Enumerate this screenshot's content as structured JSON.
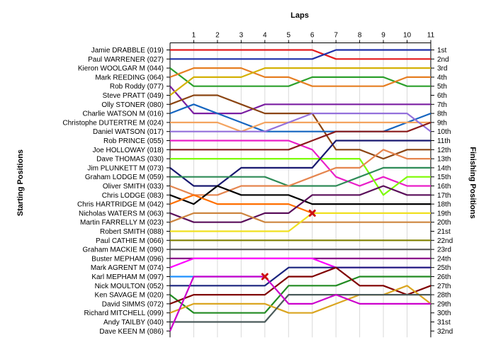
{
  "chart_data": {
    "type": "line",
    "title": "",
    "xlabel": "Laps",
    "ylabel_left": "Starting Positions",
    "ylabel_right": "Finishing Positions",
    "x": [
      0,
      1,
      2,
      3,
      4,
      5,
      6,
      7,
      8,
      9,
      10,
      11
    ],
    "x_tick_labels": [
      "1",
      "2",
      "3",
      "4",
      "5",
      "6",
      "7",
      "8",
      "9",
      "10",
      "11"
    ],
    "y_axis": "position (1 = top, 32 = bottom)",
    "grid": "vertical lines at each lap",
    "starting_labels": [
      "Jamie DRABBLE (019)",
      "Paul WARRENER (027)",
      "Kieron WOOLGAR   M (044)",
      "Mark REEDING (064)",
      "Rob Roddy (077)",
      "Steve PRATT (049)",
      "Olly STONER (080)",
      "Charlie WATSON   M (016)",
      "Christophe DUTERTRE   M (024)",
      "Daniel WATSON (017)",
      "Rob PRINCE (055)",
      "Joe HOLLOWAY (018)",
      "Dave THOMAS (030)",
      "Jim PLUNKETT   M (073)",
      "Graham LODGE   M (059)",
      "Oliver SMITH (033)",
      "Chris LODGE (083)",
      "Chris HARTRIDGE   M (042)",
      "Nicholas WATERS   M (063)",
      "Martin FARRELLY   M (023)",
      "Robert SMITH (088)",
      "Paul CATHIE   M (066)",
      "Graham MACKIE   M (090)",
      "Buster MEPHAM (096)",
      "Mark AGRENT   M (074)",
      "Karl MEPHAM   M (097)",
      "Nick MOULTON (052)",
      "Ken SAVAGE   M (020)",
      "David SIMMS (072)",
      "Richard MITCHELL (099)",
      "Andy TAILBY (040)",
      "Dave KEEN   M (086)"
    ],
    "finishing_labels": [
      "1st",
      "2nd",
      "3rd",
      "4th",
      "5th",
      "6th",
      "7th",
      "8th",
      "9th",
      "10th",
      "11th",
      "12th",
      "13th",
      "14th",
      "15th",
      "16th",
      "17th",
      "18th",
      "19th",
      "20th",
      "21st",
      "22nd",
      "23rd",
      "24th",
      "25th",
      "26th",
      "27th",
      "28th",
      "29th",
      "30th",
      "31st",
      "32nd"
    ],
    "series": [
      {
        "color": "#e31a1c",
        "positions": [
          1,
          1,
          1,
          1,
          1,
          1,
          1,
          2,
          2,
          2,
          2,
          2
        ]
      },
      {
        "color": "#1f2fa8",
        "positions": [
          2,
          2,
          2,
          2,
          2,
          2,
          2,
          1,
          1,
          1,
          1,
          1
        ]
      },
      {
        "color": "#2ca02c",
        "positions": [
          3,
          5,
          5,
          5,
          5,
          5,
          4,
          4,
          4,
          4,
          5,
          5
        ]
      },
      {
        "color": "#e67e22",
        "positions": [
          4,
          3,
          3,
          3,
          4,
          4,
          5,
          5,
          5,
          5,
          4,
          4
        ]
      },
      {
        "color": "#7b1fa2",
        "positions": [
          5,
          8,
          8,
          8,
          7,
          7,
          7,
          7,
          7,
          7,
          7,
          7
        ]
      },
      {
        "color": "#d4b106",
        "positions": [
          6,
          4,
          4,
          4,
          3,
          3,
          3,
          3,
          3,
          3,
          3,
          3
        ]
      },
      {
        "color": "#8b4513",
        "positions": [
          7,
          6,
          6,
          7,
          8,
          8,
          8,
          12,
          12,
          13,
          12,
          12
        ]
      },
      {
        "color": "#1565c0",
        "positions": [
          8,
          7,
          8,
          9,
          10,
          10,
          10,
          10,
          10,
          10,
          9,
          8
        ]
      },
      {
        "color": "#f4a460",
        "positions": [
          9,
          9,
          9,
          10,
          9,
          9,
          9,
          9,
          9,
          9,
          9,
          9
        ]
      },
      {
        "color": "#9370db",
        "positions": [
          10,
          10,
          10,
          10,
          10,
          9,
          8,
          8,
          8,
          8,
          8,
          10
        ]
      },
      {
        "color": "#e91ec8",
        "positions": [
          11,
          11,
          11,
          11,
          11,
          11,
          12,
          15,
          16,
          15,
          16,
          16
        ]
      },
      {
        "color": "#8b1a1a",
        "positions": [
          12,
          12,
          12,
          12,
          12,
          12,
          11,
          10,
          10,
          10,
          10,
          9
        ]
      },
      {
        "color": "#7cfc00",
        "positions": [
          13,
          13,
          13,
          13,
          13,
          13,
          13,
          13,
          13,
          17,
          15,
          15
        ]
      },
      {
        "color": "#191970",
        "positions": [
          14,
          16,
          16,
          14,
          14,
          14,
          14,
          11,
          11,
          11,
          11,
          11
        ]
      },
      {
        "color": "#2e8b57",
        "positions": [
          15,
          15,
          15,
          15,
          15,
          16,
          16,
          16,
          15,
          14,
          14,
          14
        ]
      },
      {
        "color": "#e5854e",
        "positions": [
          16,
          17,
          17,
          16,
          16,
          16,
          15,
          14,
          14,
          12,
          13,
          13
        ]
      },
      {
        "color": "#000000",
        "positions": [
          17,
          18,
          16,
          17,
          17,
          17,
          18,
          18,
          18,
          18,
          18,
          18
        ]
      },
      {
        "color": "#ff6f00",
        "positions": [
          18,
          17,
          18,
          18,
          18,
          18,
          19
        ]
      },
      {
        "color": "#5a0f5a",
        "positions": [
          19,
          20,
          20,
          20,
          19,
          19,
          17,
          17,
          17,
          16,
          17,
          17
        ]
      },
      {
        "color": "#cd853f",
        "positions": [
          20,
          19,
          19,
          19,
          20,
          20,
          20,
          20,
          20,
          20,
          20,
          20
        ]
      },
      {
        "color": "#f0e020",
        "positions": [
          21,
          21,
          21,
          21,
          21,
          21,
          19,
          19,
          19,
          19,
          19,
          19
        ]
      },
      {
        "color": "#808000",
        "positions": [
          22,
          22,
          22,
          22,
          22,
          22,
          22,
          22,
          22,
          22,
          22,
          22
        ]
      },
      {
        "color": "#606060",
        "positions": [
          23,
          23,
          23,
          23,
          23,
          23,
          23,
          23,
          23,
          23,
          23,
          23
        ]
      },
      {
        "color": "#8b008b",
        "positions": [
          24,
          24,
          24,
          24,
          24,
          24,
          24,
          24,
          24,
          24,
          24,
          24
        ]
      },
      {
        "color": "#ff00ff",
        "positions": [
          25,
          24,
          24,
          24,
          24,
          24,
          24,
          25,
          25,
          25,
          25,
          25
        ]
      },
      {
        "color": "#1e90ff",
        "positions": [
          26,
          26,
          26,
          26,
          26
        ]
      },
      {
        "color": "#1a237e",
        "positions": [
          27,
          27,
          27,
          27,
          27,
          25,
          25,
          25,
          25,
          25,
          25,
          25
        ]
      },
      {
        "color": "#228b22",
        "positions": [
          28,
          30,
          30,
          30,
          30,
          27,
          27,
          27,
          26,
          26,
          26,
          26
        ]
      },
      {
        "color": "#800000",
        "positions": [
          29,
          28,
          28,
          28,
          28,
          26,
          26,
          25,
          27,
          27,
          28,
          27
        ]
      },
      {
        "color": "#daa520",
        "positions": [
          30,
          29,
          29,
          29,
          29,
          30,
          30,
          29,
          28,
          28,
          27,
          29
        ]
      },
      {
        "color": "#4a5a5a",
        "positions": [
          31,
          31,
          31,
          31,
          31,
          28,
          28,
          28,
          28,
          28,
          28,
          28
        ]
      },
      {
        "color": "#cc00cc",
        "positions": [
          32,
          26,
          26,
          26,
          26,
          29,
          29,
          28,
          29,
          29,
          29,
          29
        ]
      }
    ],
    "retirements": [
      {
        "lap": 6,
        "position": 19
      },
      {
        "lap": 4,
        "position": 26
      }
    ]
  }
}
